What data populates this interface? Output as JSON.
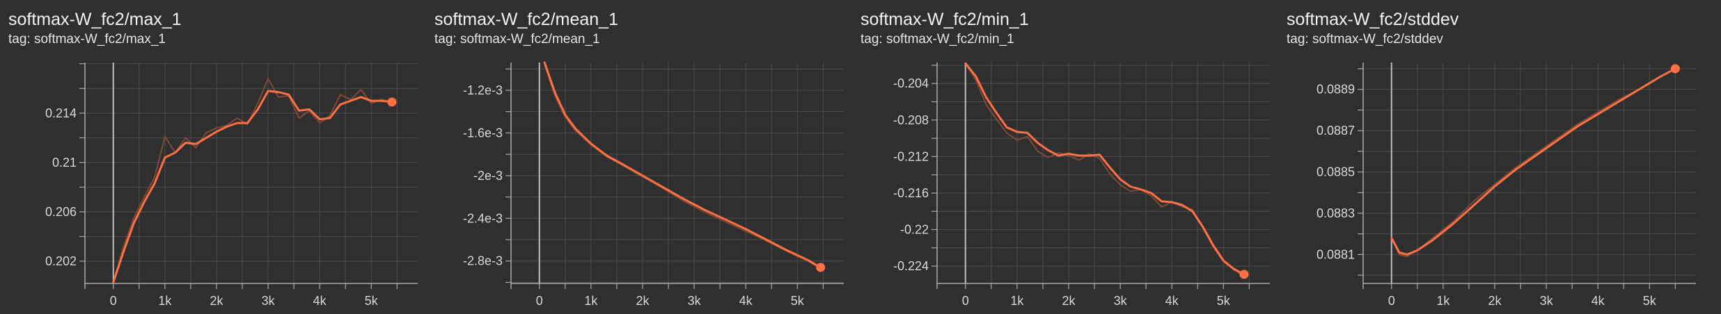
{
  "colors": {
    "background": "#2f2f2f",
    "grid": "#4d4d4d",
    "axis": "#a8a8a8",
    "zero_line": "#bdbdbd",
    "smoothed_line": "#ff7043",
    "raw_line": "#7d4a3a",
    "text": "#d8d8d8"
  },
  "chart_data": [
    {
      "type": "line",
      "title": "softmax-W_fc2/max_1",
      "tag": "tag: softmax-W_fc2/max_1",
      "xticks": [
        0,
        1000,
        2000,
        3000,
        4000,
        5000
      ],
      "xtick_labels": [
        "0",
        "1k",
        "2k",
        "3k",
        "4k",
        "5k"
      ],
      "xlim": [
        -550,
        5900
      ],
      "yticks": [
        0.202,
        0.206,
        0.21,
        0.214
      ],
      "ytick_labels": [
        "0.202",
        "0.206",
        "0.21",
        "0.214"
      ],
      "ylim": [
        0.2002,
        0.2181
      ],
      "grid": true,
      "series": [
        {
          "kind": "raw",
          "x": [
            0,
            200,
            400,
            600,
            800,
            1000,
            1200,
            1400,
            1600,
            1800,
            2000,
            2200,
            2400,
            2600,
            2800,
            3000,
            3200,
            3400,
            3600,
            3800,
            4000,
            4200,
            4400,
            4600,
            4800,
            5000,
            5200,
            5400
          ],
          "y": [
            0.2003,
            0.2032,
            0.2055,
            0.2072,
            0.2088,
            0.2121,
            0.2108,
            0.212,
            0.2112,
            0.2124,
            0.2128,
            0.213,
            0.2136,
            0.2131,
            0.2148,
            0.2168,
            0.2153,
            0.2154,
            0.2136,
            0.2142,
            0.2132,
            0.2138,
            0.2155,
            0.2151,
            0.2159,
            0.2148,
            0.2151,
            0.2149
          ]
        },
        {
          "kind": "smoothed",
          "x": [
            0,
            200,
            400,
            600,
            800,
            1000,
            1200,
            1400,
            1600,
            1800,
            2000,
            2200,
            2400,
            2600,
            2800,
            3000,
            3200,
            3400,
            3600,
            3800,
            4000,
            4200,
            4400,
            4600,
            4800,
            5000,
            5200,
            5400
          ],
          "y": [
            0.2003,
            0.2028,
            0.2051,
            0.2068,
            0.2083,
            0.2104,
            0.2108,
            0.2116,
            0.2115,
            0.212,
            0.2125,
            0.2129,
            0.2132,
            0.2132,
            0.2143,
            0.2158,
            0.2157,
            0.2155,
            0.2142,
            0.2143,
            0.2135,
            0.2136,
            0.2147,
            0.215,
            0.2153,
            0.215,
            0.215,
            0.2149
          ]
        }
      ]
    },
    {
      "type": "line",
      "title": "softmax-W_fc2/mean_1",
      "tag": "tag: softmax-W_fc2/mean_1",
      "xticks": [
        0,
        1000,
        2000,
        3000,
        4000,
        5000
      ],
      "xtick_labels": [
        "0",
        "1k",
        "2k",
        "3k",
        "4k",
        "5k"
      ],
      "xlim": [
        -550,
        5900
      ],
      "yticks": [
        -0.0012,
        -0.0016,
        -0.002,
        -0.0024,
        -0.0028
      ],
      "ytick_labels": [
        "-1.2e-3",
        "-1.6e-3",
        "-2e-3",
        "-2.4e-3",
        "-2.8e-3"
      ],
      "ylim": [
        -0.00301,
        -0.00094
      ],
      "grid": true,
      "series": [
        {
          "kind": "raw",
          "x": [
            100,
            300,
            500,
            700,
            1000,
            1300,
            1600,
            2000,
            2400,
            2800,
            3200,
            3600,
            4000,
            4400,
            4800,
            5200,
            5450
          ],
          "y": [
            -0.00096,
            -0.00125,
            -0.00145,
            -0.00158,
            -0.00171,
            -0.00182,
            -0.0019,
            -0.00201,
            -0.00212,
            -0.00224,
            -0.00234,
            -0.00243,
            -0.00252,
            -0.00261,
            -0.00271,
            -0.0028,
            -0.00287
          ]
        },
        {
          "kind": "smoothed",
          "x": [
            100,
            300,
            500,
            700,
            1000,
            1300,
            1600,
            2000,
            2400,
            2800,
            3200,
            3600,
            4000,
            4400,
            4800,
            5200,
            5450
          ],
          "y": [
            -0.00094,
            -0.00122,
            -0.00143,
            -0.00156,
            -0.0017,
            -0.00181,
            -0.00189,
            -0.002,
            -0.00211,
            -0.00222,
            -0.00232,
            -0.00241,
            -0.0025,
            -0.0026,
            -0.0027,
            -0.00279,
            -0.00286
          ]
        }
      ]
    },
    {
      "type": "line",
      "title": "softmax-W_fc2/min_1",
      "tag": "tag: softmax-W_fc2/min_1",
      "xticks": [
        0,
        1000,
        2000,
        3000,
        4000,
        5000
      ],
      "xtick_labels": [
        "0",
        "1k",
        "2k",
        "3k",
        "4k",
        "5k"
      ],
      "xlim": [
        -550,
        5900
      ],
      "yticks": [
        -0.204,
        -0.208,
        -0.212,
        -0.216,
        -0.22,
        -0.224
      ],
      "ytick_labels": [
        "-0.204",
        "-0.208",
        "-0.212",
        "-0.216",
        "-0.22",
        "-0.224"
      ],
      "ylim": [
        -0.2259,
        -0.2017
      ],
      "grid": true,
      "series": [
        {
          "kind": "raw",
          "x": [
            0,
            200,
            400,
            600,
            800,
            1000,
            1200,
            1400,
            1600,
            1800,
            2000,
            2200,
            2400,
            2600,
            2800,
            3000,
            3200,
            3400,
            3600,
            3800,
            4000,
            4200,
            4400,
            4600,
            4800,
            5000,
            5200,
            5400
          ],
          "y": [
            -0.2018,
            -0.2036,
            -0.2063,
            -0.2079,
            -0.2094,
            -0.2102,
            -0.2098,
            -0.2114,
            -0.2121,
            -0.2116,
            -0.2119,
            -0.2124,
            -0.2117,
            -0.2122,
            -0.2139,
            -0.2151,
            -0.2158,
            -0.2156,
            -0.2163,
            -0.2175,
            -0.217,
            -0.2175,
            -0.2178,
            -0.2198,
            -0.2219,
            -0.2235,
            -0.2244,
            -0.2251
          ]
        },
        {
          "kind": "smoothed",
          "x": [
            0,
            200,
            400,
            600,
            800,
            1000,
            1200,
            1400,
            1600,
            1800,
            2000,
            2200,
            2400,
            2600,
            2800,
            3000,
            3200,
            3400,
            3600,
            3800,
            4000,
            4200,
            4400,
            4600,
            4800,
            5000,
            5200,
            5400
          ],
          "y": [
            -0.2018,
            -0.2032,
            -0.2055,
            -0.2072,
            -0.2088,
            -0.2093,
            -0.2094,
            -0.2105,
            -0.2113,
            -0.2119,
            -0.2117,
            -0.2119,
            -0.2119,
            -0.2118,
            -0.2132,
            -0.2145,
            -0.2153,
            -0.2156,
            -0.216,
            -0.2169,
            -0.217,
            -0.2173,
            -0.218,
            -0.2197,
            -0.2217,
            -0.2234,
            -0.2243,
            -0.2249
          ]
        }
      ]
    },
    {
      "type": "line",
      "title": "softmax-W_fc2/stddev",
      "tag": "tag: softmax-W_fc2/stddev",
      "xticks": [
        0,
        1000,
        2000,
        3000,
        4000,
        5000
      ],
      "xtick_labels": [
        "0",
        "1k",
        "2k",
        "3k",
        "4k",
        "5k"
      ],
      "xlim": [
        -550,
        5900
      ],
      "yticks": [
        0.0881,
        0.0883,
        0.0885,
        0.0887,
        0.0889
      ],
      "ytick_labels": [
        "0.0881",
        "0.0883",
        "0.0885",
        "0.0887",
        "0.0889"
      ],
      "ylim": [
        0.08796,
        0.08903
      ],
      "grid": true,
      "series": [
        {
          "kind": "raw",
          "x": [
            0,
            150,
            300,
            500,
            800,
            1200,
            1600,
            2000,
            2400,
            2800,
            3200,
            3600,
            4000,
            4400,
            4800,
            5200,
            5500
          ],
          "y": [
            0.08818,
            0.0881,
            0.08809,
            0.08812,
            0.08818,
            0.08826,
            0.08836,
            0.08844,
            0.08852,
            0.08859,
            0.08866,
            0.08873,
            0.08879,
            0.08885,
            0.0889,
            0.08896,
            0.089
          ]
        },
        {
          "kind": "smoothed",
          "x": [
            0,
            150,
            300,
            500,
            800,
            1200,
            1600,
            2000,
            2400,
            2800,
            3200,
            3600,
            4000,
            4400,
            4800,
            5200,
            5500
          ],
          "y": [
            0.08818,
            0.08811,
            0.0881,
            0.08812,
            0.08817,
            0.08825,
            0.08834,
            0.08843,
            0.08851,
            0.08858,
            0.08865,
            0.08872,
            0.08878,
            0.08884,
            0.0889,
            0.08896,
            0.089
          ]
        }
      ]
    }
  ]
}
